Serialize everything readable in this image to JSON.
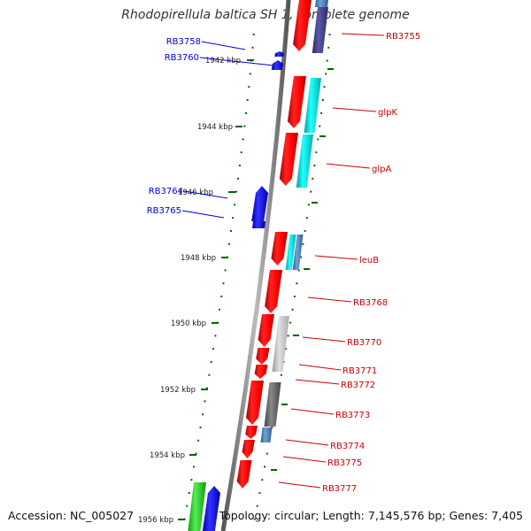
{
  "title": "Rhodopirellula baltica SH 1, complete genome",
  "accession_label": "Accession: NC_005027",
  "summary_label": "Topology: circular; Length: 7,145,576 bp; Genes: 7,405",
  "ticks": [
    {
      "label": "1942 kbp"
    },
    {
      "label": "1944 kbp"
    },
    {
      "label": "1946 kbp"
    },
    {
      "label": "1948 kbp"
    },
    {
      "label": "1950 kbp"
    },
    {
      "label": "1952 kbp"
    },
    {
      "label": "1954 kbp"
    },
    {
      "label": "1956 kbp"
    }
  ],
  "left_genes": [
    {
      "label": "RB3758",
      "color": "#0000cc"
    },
    {
      "label": "RB3760",
      "color": "#0000cc"
    },
    {
      "label": "RB3764",
      "color": "#0000cc"
    },
    {
      "label": "RB3765",
      "color": "#0000cc"
    }
  ],
  "right_genes": [
    {
      "label": "RB3755",
      "color": "#cc0000"
    },
    {
      "label": "glpK",
      "color": "#cc0000"
    },
    {
      "label": "glpA",
      "color": "#cc0000"
    },
    {
      "label": "leuB",
      "color": "#cc0000"
    },
    {
      "label": "RB3768",
      "color": "#cc0000"
    },
    {
      "label": "RB3770",
      "color": "#cc0000"
    },
    {
      "label": "RB3771",
      "color": "#cc0000"
    },
    {
      "label": "RB3772",
      "color": "#cc0000"
    },
    {
      "label": "RB3773",
      "color": "#cc0000"
    },
    {
      "label": "RB3774",
      "color": "#cc0000"
    },
    {
      "label": "RB3775",
      "color": "#cc0000"
    },
    {
      "label": "RB3777",
      "color": "#cc0000"
    }
  ],
  "colors": {
    "forward_gene": "#ff0000",
    "reverse_gene": "#0000ff",
    "backbone": "#7f7f7f",
    "tick": "#006600"
  }
}
